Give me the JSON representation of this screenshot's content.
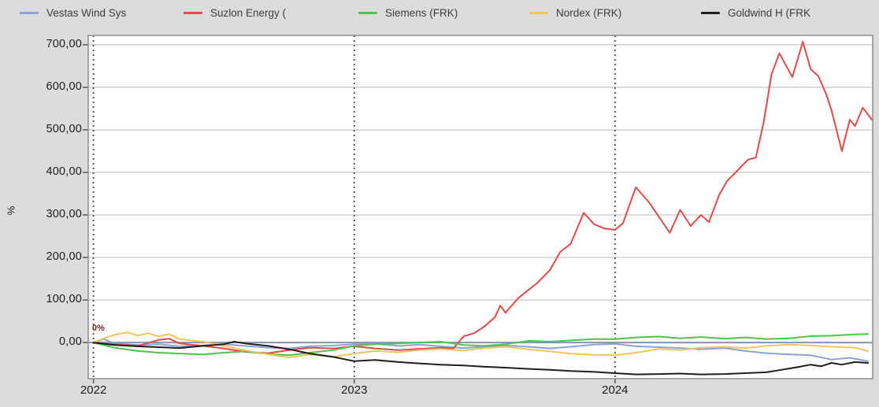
{
  "legend": {
    "items": [
      {
        "label": "Vestas Wind Sys"
      },
      {
        "label": "Suzlon Energy ("
      },
      {
        "label": "Siemens (FRK)"
      },
      {
        "label": "Nordex (FRK)"
      },
      {
        "label": "Goldwind H (FRK"
      }
    ]
  },
  "annotation": {
    "start_label": "0%"
  },
  "chart_data": {
    "type": "line",
    "title": "",
    "xlabel": "",
    "ylabel": "%",
    "xlim": [
      2021.98,
      2024.988
    ],
    "ylim": [
      -85,
      722
    ],
    "grid": "horizontal solid, vertical dashed at year starts",
    "legend_position": "top",
    "zero_line_color": "#8494b0",
    "colors": {
      "background": "#dcdcdc",
      "plot_background": "#ffffff",
      "gridline": "#b8b8b8",
      "plot_border": "#8f8f8f",
      "dashed_year_line": "#5a5a5a",
      "tick_text": "#1c1c1c"
    },
    "yticks": [
      {
        "label": "0,00",
        "value": 0
      },
      {
        "label": "100,00",
        "value": 100
      },
      {
        "label": "200,00",
        "value": 200
      },
      {
        "label": "300,00",
        "value": 300
      },
      {
        "label": "400,00",
        "value": 400
      },
      {
        "label": "500,00",
        "value": 500
      },
      {
        "label": "600,00",
        "value": 600
      },
      {
        "label": "700,00",
        "value": 700
      }
    ],
    "xticks": [
      {
        "label": "2022",
        "value": 2022
      },
      {
        "label": "2023",
        "value": 2023
      },
      {
        "label": "2024",
        "value": 2024
      }
    ],
    "series": [
      {
        "name": "Vestas Wind Sys",
        "color": "#8ba2d6",
        "points": [
          [
            2022.0,
            0
          ],
          [
            2022.04,
            8
          ],
          [
            2022.08,
            -2
          ],
          [
            2022.17,
            -6
          ],
          [
            2022.25,
            -4
          ],
          [
            2022.33,
            -9
          ],
          [
            2022.42,
            -7
          ],
          [
            2022.5,
            -4
          ],
          [
            2022.58,
            -8
          ],
          [
            2022.67,
            -12
          ],
          [
            2022.75,
            -14
          ],
          [
            2022.83,
            -9
          ],
          [
            2022.92,
            -7
          ],
          [
            2023.0,
            -4
          ],
          [
            2023.08,
            -3
          ],
          [
            2023.17,
            -8
          ],
          [
            2023.25,
            -5
          ],
          [
            2023.33,
            -9
          ],
          [
            2023.42,
            -13
          ],
          [
            2023.5,
            -10
          ],
          [
            2023.58,
            -7
          ],
          [
            2023.67,
            -10
          ],
          [
            2023.75,
            -14
          ],
          [
            2023.83,
            -10
          ],
          [
            2023.92,
            -5
          ],
          [
            2024.0,
            -3
          ],
          [
            2024.08,
            -9
          ],
          [
            2024.17,
            -11
          ],
          [
            2024.25,
            -13
          ],
          [
            2024.33,
            -16
          ],
          [
            2024.42,
            -13
          ],
          [
            2024.5,
            -20
          ],
          [
            2024.58,
            -25
          ],
          [
            2024.67,
            -28
          ],
          [
            2024.75,
            -30
          ],
          [
            2024.83,
            -40
          ],
          [
            2024.9,
            -36
          ],
          [
            2024.97,
            -44
          ]
        ]
      },
      {
        "name": "Suzlon Energy (",
        "color": "#e14b4b",
        "points": [
          [
            2022.0,
            0
          ],
          [
            2022.08,
            -4
          ],
          [
            2022.17,
            -8
          ],
          [
            2022.25,
            6
          ],
          [
            2022.29,
            9
          ],
          [
            2022.33,
            -2
          ],
          [
            2022.42,
            -8
          ],
          [
            2022.5,
            -14
          ],
          [
            2022.58,
            -22
          ],
          [
            2022.67,
            -25
          ],
          [
            2022.75,
            -18
          ],
          [
            2022.83,
            -12
          ],
          [
            2022.92,
            -14
          ],
          [
            2023.0,
            -9
          ],
          [
            2023.08,
            -14
          ],
          [
            2023.17,
            -18
          ],
          [
            2023.25,
            -15
          ],
          [
            2023.33,
            -12
          ],
          [
            2023.38,
            -14
          ],
          [
            2023.42,
            15
          ],
          [
            2023.46,
            22
          ],
          [
            2023.5,
            38
          ],
          [
            2023.54,
            60
          ],
          [
            2023.56,
            87
          ],
          [
            2023.58,
            70
          ],
          [
            2023.63,
            105
          ],
          [
            2023.7,
            139
          ],
          [
            2023.75,
            170
          ],
          [
            2023.79,
            213
          ],
          [
            2023.83,
            232
          ],
          [
            2023.88,
            305
          ],
          [
            2023.92,
            278
          ],
          [
            2023.96,
            268
          ],
          [
            2024.0,
            265
          ],
          [
            2024.03,
            280
          ],
          [
            2024.08,
            365
          ],
          [
            2024.13,
            330
          ],
          [
            2024.21,
            258
          ],
          [
            2024.25,
            312
          ],
          [
            2024.29,
            274
          ],
          [
            2024.33,
            300
          ],
          [
            2024.36,
            283
          ],
          [
            2024.4,
            348
          ],
          [
            2024.43,
            380
          ],
          [
            2024.48,
            411
          ],
          [
            2024.51,
            430
          ],
          [
            2024.54,
            435
          ],
          [
            2024.57,
            518
          ],
          [
            2024.6,
            630
          ],
          [
            2024.63,
            680
          ],
          [
            2024.68,
            624
          ],
          [
            2024.72,
            707
          ],
          [
            2024.75,
            643
          ],
          [
            2024.78,
            626
          ],
          [
            2024.81,
            583
          ],
          [
            2024.83,
            546
          ],
          [
            2024.87,
            450
          ],
          [
            2024.9,
            524
          ],
          [
            2024.92,
            509
          ],
          [
            2024.95,
            552
          ],
          [
            2024.985,
            524
          ]
        ]
      },
      {
        "name": "Siemens (FRK)",
        "color": "#4ec44e",
        "points": [
          [
            2022.0,
            0
          ],
          [
            2022.08,
            -12
          ],
          [
            2022.17,
            -20
          ],
          [
            2022.25,
            -24
          ],
          [
            2022.33,
            -26
          ],
          [
            2022.42,
            -28
          ],
          [
            2022.5,
            -24
          ],
          [
            2022.58,
            -21
          ],
          [
            2022.67,
            -27
          ],
          [
            2022.75,
            -30
          ],
          [
            2022.83,
            -24
          ],
          [
            2022.92,
            -18
          ],
          [
            2023.0,
            -8
          ],
          [
            2023.08,
            -4
          ],
          [
            2023.17,
            -2
          ],
          [
            2023.25,
            0
          ],
          [
            2023.33,
            2
          ],
          [
            2023.42,
            -6
          ],
          [
            2023.5,
            -8
          ],
          [
            2023.58,
            -4
          ],
          [
            2023.67,
            4
          ],
          [
            2023.75,
            2
          ],
          [
            2023.83,
            5
          ],
          [
            2023.92,
            8
          ],
          [
            2024.0,
            8
          ],
          [
            2024.08,
            12
          ],
          [
            2024.17,
            14
          ],
          [
            2024.25,
            10
          ],
          [
            2024.33,
            13
          ],
          [
            2024.42,
            9
          ],
          [
            2024.5,
            12
          ],
          [
            2024.58,
            8
          ],
          [
            2024.67,
            10
          ],
          [
            2024.75,
            15
          ],
          [
            2024.83,
            16
          ],
          [
            2024.92,
            19
          ],
          [
            2024.97,
            20
          ]
        ]
      },
      {
        "name": "Nordex (FRK)",
        "color": "#eec75a",
        "points": [
          [
            2022.0,
            0
          ],
          [
            2022.04,
            10
          ],
          [
            2022.08,
            18
          ],
          [
            2022.13,
            24
          ],
          [
            2022.17,
            16
          ],
          [
            2022.21,
            22
          ],
          [
            2022.25,
            14
          ],
          [
            2022.29,
            20
          ],
          [
            2022.33,
            8
          ],
          [
            2022.42,
            2
          ],
          [
            2022.5,
            -8
          ],
          [
            2022.58,
            -18
          ],
          [
            2022.67,
            -28
          ],
          [
            2022.75,
            -35
          ],
          [
            2022.83,
            -28
          ],
          [
            2022.92,
            -34
          ],
          [
            2023.0,
            -26
          ],
          [
            2023.08,
            -20
          ],
          [
            2023.17,
            -23
          ],
          [
            2023.25,
            -18
          ],
          [
            2023.33,
            -15
          ],
          [
            2023.42,
            -19
          ],
          [
            2023.5,
            -13
          ],
          [
            2023.58,
            -10
          ],
          [
            2023.67,
            -16
          ],
          [
            2023.75,
            -21
          ],
          [
            2023.83,
            -26
          ],
          [
            2023.92,
            -29
          ],
          [
            2024.0,
            -30
          ],
          [
            2024.08,
            -24
          ],
          [
            2024.17,
            -15
          ],
          [
            2024.25,
            -18
          ],
          [
            2024.33,
            -12
          ],
          [
            2024.42,
            -10
          ],
          [
            2024.5,
            -13
          ],
          [
            2024.58,
            -8
          ],
          [
            2024.67,
            -5
          ],
          [
            2024.75,
            -7
          ],
          [
            2024.83,
            -10
          ],
          [
            2024.92,
            -12
          ],
          [
            2024.97,
            -20
          ]
        ]
      },
      {
        "name": "Goldwind H (FRK",
        "color": "#1e1e1e",
        "points": [
          [
            2022.0,
            0
          ],
          [
            2022.08,
            -6
          ],
          [
            2022.17,
            -9
          ],
          [
            2022.25,
            -11
          ],
          [
            2022.33,
            -13
          ],
          [
            2022.42,
            -8
          ],
          [
            2022.5,
            -4
          ],
          [
            2022.54,
            2
          ],
          [
            2022.58,
            -2
          ],
          [
            2022.67,
            -8
          ],
          [
            2022.75,
            -16
          ],
          [
            2022.83,
            -26
          ],
          [
            2022.92,
            -34
          ],
          [
            2023.0,
            -44
          ],
          [
            2023.08,
            -41
          ],
          [
            2023.17,
            -46
          ],
          [
            2023.25,
            -49
          ],
          [
            2023.33,
            -52
          ],
          [
            2023.42,
            -54
          ],
          [
            2023.5,
            -57
          ],
          [
            2023.58,
            -59
          ],
          [
            2023.67,
            -62
          ],
          [
            2023.75,
            -64
          ],
          [
            2023.83,
            -67
          ],
          [
            2023.92,
            -69
          ],
          [
            2024.0,
            -72
          ],
          [
            2024.08,
            -75
          ],
          [
            2024.17,
            -74
          ],
          [
            2024.25,
            -73
          ],
          [
            2024.33,
            -75
          ],
          [
            2024.42,
            -74
          ],
          [
            2024.5,
            -72
          ],
          [
            2024.58,
            -70
          ],
          [
            2024.63,
            -65
          ],
          [
            2024.7,
            -58
          ],
          [
            2024.75,
            -52
          ],
          [
            2024.79,
            -56
          ],
          [
            2024.83,
            -48
          ],
          [
            2024.87,
            -52
          ],
          [
            2024.92,
            -46
          ],
          [
            2024.97,
            -48
          ]
        ]
      }
    ]
  }
}
